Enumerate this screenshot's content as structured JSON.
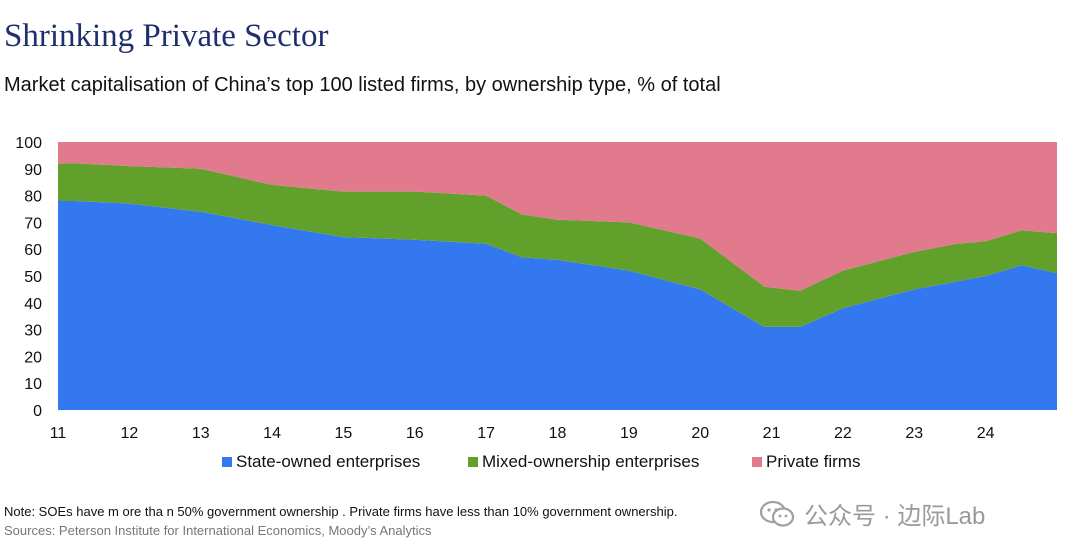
{
  "title": "Shrinking Private Sector",
  "subtitle": "Market capitalisation of China’s top 100 listed firms, by ownership type, % of total",
  "note": "Note:  SOEs  have m ore tha n 50% government  ownership . Private firms have less than 10% government ownership.",
  "sources": "Sources: Peterson Institute for International Economics, Moody’s Analytics",
  "watermark": {
    "text": "公众号 · 边际Lab",
    "icon": "wechat-icon"
  },
  "colors": {
    "soe": "#3478f0",
    "mixed": "#62a02c",
    "private": "#e07a8c"
  },
  "chart_data": {
    "type": "area",
    "stacked": true,
    "title": "Shrinking Private Sector",
    "subtitle": "Market capitalisation of China’s top 100 listed firms, by ownership type, % of total",
    "xlabel": "",
    "ylabel": "",
    "ylim": [
      0,
      100
    ],
    "yticks": [
      0,
      10,
      20,
      30,
      40,
      50,
      60,
      70,
      80,
      90,
      100
    ],
    "xlim": [
      11,
      25
    ],
    "xticks": [
      11,
      12,
      13,
      14,
      15,
      16,
      17,
      18,
      19,
      20,
      21,
      22,
      23,
      24
    ],
    "xtick_labels": [
      "11",
      "12",
      "13",
      "14",
      "15",
      "16",
      "17",
      "18",
      "19",
      "20",
      "21",
      "22",
      "23",
      "24"
    ],
    "x": [
      11.0,
      11.25,
      12.0,
      13.0,
      14.0,
      15.0,
      16.0,
      17.0,
      17.5,
      18.0,
      19.0,
      20.0,
      20.9,
      21.4,
      22.0,
      23.0,
      23.6,
      24.0,
      24.5,
      25.0
    ],
    "series": [
      {
        "name": "State-owned enterprises",
        "color": "#3478f0",
        "values": [
          78,
          78,
          77,
          74,
          69,
          64.5,
          63.5,
          62,
          57,
          56,
          52,
          45,
          31,
          31,
          38,
          45,
          48,
          50,
          54,
          51
        ]
      },
      {
        "name": "Mixed-ownership enterprises",
        "color": "#62a02c",
        "values": [
          14,
          14,
          14,
          16,
          15,
          17,
          18,
          18,
          16,
          15,
          18,
          19,
          15,
          13.5,
          14,
          14,
          14,
          13,
          13,
          15
        ]
      },
      {
        "name": "Private firms",
        "color": "#e07a8c",
        "values": [
          8,
          8,
          9,
          10,
          16,
          18.5,
          18.5,
          20,
          27,
          29,
          30,
          36,
          54,
          55.5,
          48,
          41,
          38,
          37,
          33,
          34
        ]
      }
    ],
    "legend": [
      "State-owned enterprises",
      "Mixed-ownership enterprises",
      "Private firms"
    ],
    "legend_position": "bottom"
  }
}
